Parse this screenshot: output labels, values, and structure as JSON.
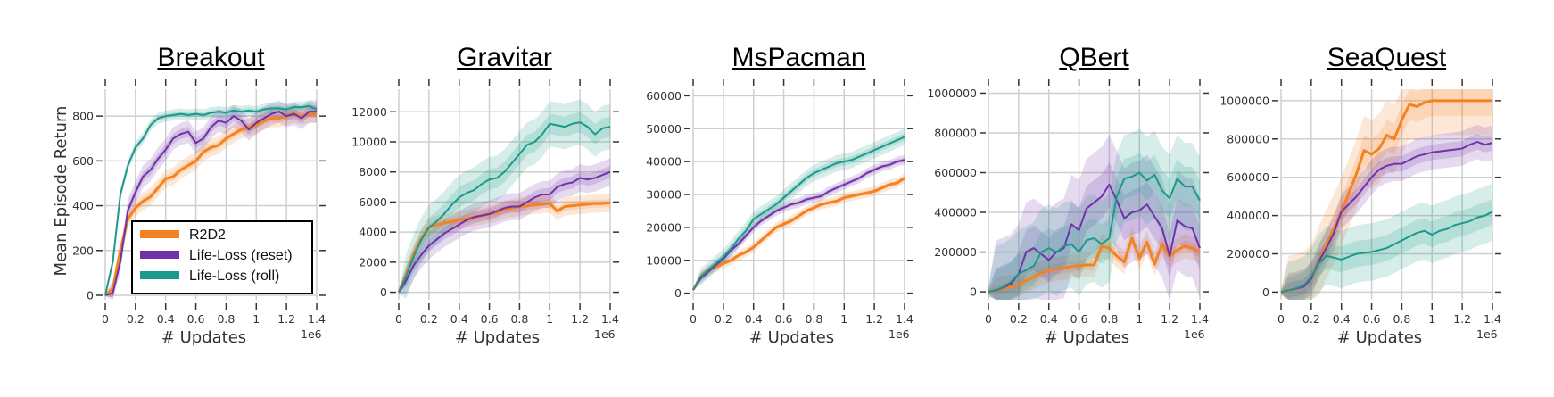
{
  "figure": {
    "ylabel": "Mean Episode Return",
    "xlabel": "# Updates",
    "x_multiplier": "1e6",
    "legend": [
      {
        "label": "R2D2",
        "color": "#f58220"
      },
      {
        "label": "Life-Loss (reset)",
        "color": "#6f32a8"
      },
      {
        "label": "Life-Loss (roll)",
        "color": "#1b9a8b"
      }
    ]
  },
  "chart_data": [
    {
      "type": "line",
      "title": "Breakout",
      "xlabel": "# Updates",
      "ylabel": "Mean Episode Return",
      "x_multiplier": "1e6",
      "xlim": [
        0,
        1.4
      ],
      "ylim": [
        -20,
        920
      ],
      "xticks": [
        0.0,
        0.2,
        0.4,
        0.6,
        0.8,
        1.0,
        1.2,
        1.4
      ],
      "yticks": [
        0,
        200,
        400,
        600,
        800
      ],
      "grid": true,
      "legend_position": "lower center",
      "x": [
        0.0,
        0.05,
        0.1,
        0.15,
        0.2,
        0.25,
        0.3,
        0.35,
        0.4,
        0.45,
        0.5,
        0.55,
        0.6,
        0.65,
        0.7,
        0.75,
        0.8,
        0.85,
        0.9,
        0.95,
        1.0,
        1.05,
        1.1,
        1.15,
        1.2,
        1.25,
        1.3,
        1.35,
        1.4
      ],
      "series": [
        {
          "name": "R2D2",
          "color": "#f58220",
          "band": 40,
          "values": [
            0,
            30,
            200,
            340,
            390,
            420,
            440,
            480,
            520,
            530,
            560,
            580,
            600,
            640,
            660,
            670,
            700,
            720,
            740,
            750,
            760,
            780,
            790,
            790,
            800,
            810,
            800,
            810,
            810
          ]
        },
        {
          "name": "Life-Loss (reset)",
          "color": "#6f32a8",
          "band": 50,
          "values": [
            0,
            10,
            150,
            380,
            460,
            530,
            560,
            610,
            650,
            700,
            720,
            730,
            680,
            700,
            750,
            780,
            770,
            800,
            780,
            740,
            770,
            790,
            810,
            820,
            800,
            810,
            790,
            820,
            820
          ]
        },
        {
          "name": "Life-Loss (roll)",
          "color": "#1b9a8b",
          "band": 25,
          "values": [
            0,
            150,
            450,
            580,
            660,
            700,
            760,
            790,
            800,
            805,
            810,
            805,
            810,
            805,
            815,
            820,
            815,
            825,
            820,
            825,
            820,
            830,
            835,
            835,
            830,
            840,
            840,
            845,
            830
          ]
        }
      ]
    },
    {
      "type": "line",
      "title": "Gravitar",
      "xlabel": "# Updates",
      "ylabel": "",
      "x_multiplier": "1e6",
      "xlim": [
        0,
        1.4
      ],
      "ylim": [
        -500,
        13500
      ],
      "xticks": [
        0.0,
        0.2,
        0.4,
        0.6,
        0.8,
        1.0,
        1.2,
        1.4
      ],
      "yticks": [
        0,
        2000,
        4000,
        6000,
        8000,
        10000,
        12000
      ],
      "grid": true,
      "x": [
        0.0,
        0.05,
        0.1,
        0.15,
        0.2,
        0.25,
        0.3,
        0.35,
        0.4,
        0.45,
        0.5,
        0.55,
        0.6,
        0.65,
        0.7,
        0.75,
        0.8,
        0.85,
        0.9,
        0.95,
        1.0,
        1.05,
        1.1,
        1.15,
        1.2,
        1.25,
        1.3,
        1.35,
        1.4
      ],
      "series": [
        {
          "name": "R2D2",
          "color": "#f58220",
          "band": 600,
          "values": [
            0,
            1200,
            2600,
            3600,
            4300,
            4500,
            4600,
            4700,
            4800,
            4900,
            5000,
            5100,
            5200,
            5300,
            5500,
            5600,
            5700,
            5750,
            5800,
            5850,
            5900,
            5400,
            5700,
            5750,
            5800,
            5850,
            5900,
            5900,
            5950
          ]
        },
        {
          "name": "Life-Loss (reset)",
          "color": "#6f32a8",
          "band": 900,
          "values": [
            0,
            800,
            1800,
            2500,
            3100,
            3500,
            3900,
            4200,
            4500,
            4800,
            5000,
            5100,
            5200,
            5400,
            5600,
            5700,
            5700,
            6000,
            6300,
            6500,
            6500,
            7000,
            7200,
            7300,
            7600,
            7500,
            7600,
            7800,
            8000
          ]
        },
        {
          "name": "Life-Loss (roll)",
          "color": "#1b9a8b",
          "band": 1500,
          "values": [
            0,
            1100,
            2400,
            3500,
            4300,
            4700,
            5200,
            5800,
            6300,
            6600,
            6800,
            7200,
            7500,
            7600,
            8000,
            8600,
            9200,
            9800,
            10000,
            10500,
            11200,
            11100,
            11000,
            11200,
            11300,
            11000,
            10500,
            10900,
            11000
          ]
        }
      ]
    },
    {
      "type": "line",
      "title": "MsPacman",
      "xlabel": "# Updates",
      "ylabel": "",
      "x_multiplier": "1e6",
      "xlim": [
        0,
        1.4
      ],
      "ylim": [
        -2000,
        62000
      ],
      "xticks": [
        0.0,
        0.2,
        0.4,
        0.6,
        0.8,
        1.0,
        1.2,
        1.4
      ],
      "yticks": [
        0,
        10000,
        20000,
        30000,
        40000,
        50000,
        60000
      ],
      "grid": true,
      "x": [
        0.0,
        0.05,
        0.1,
        0.15,
        0.2,
        0.25,
        0.3,
        0.35,
        0.4,
        0.45,
        0.5,
        0.55,
        0.6,
        0.65,
        0.7,
        0.75,
        0.8,
        0.85,
        0.9,
        0.95,
        1.0,
        1.05,
        1.1,
        1.15,
        1.2,
        1.25,
        1.3,
        1.35,
        1.4
      ],
      "series": [
        {
          "name": "R2D2",
          "color": "#f58220",
          "band": 1500,
          "values": [
            1000,
            5000,
            7000,
            8000,
            9000,
            10000,
            11500,
            12500,
            14000,
            16000,
            18000,
            20000,
            21000,
            22000,
            23500,
            25000,
            26000,
            27000,
            27500,
            28000,
            29000,
            29500,
            30000,
            30500,
            31000,
            32000,
            33000,
            33500,
            35000
          ]
        },
        {
          "name": "Life-Loss (reset)",
          "color": "#6f32a8",
          "band": 1500,
          "values": [
            1000,
            4500,
            6500,
            8500,
            10500,
            13000,
            15000,
            17500,
            20000,
            22000,
            23500,
            25000,
            26000,
            27000,
            27500,
            28500,
            29000,
            29500,
            31000,
            32000,
            33000,
            34000,
            35000,
            36500,
            37500,
            38500,
            39000,
            40000,
            40500
          ]
        },
        {
          "name": "Life-Loss (roll)",
          "color": "#1b9a8b",
          "band": 2500,
          "values": [
            1000,
            5000,
            7000,
            9000,
            11000,
            13500,
            16500,
            19000,
            22500,
            24000,
            25500,
            27000,
            29000,
            31000,
            33000,
            35000,
            36500,
            37500,
            38500,
            39500,
            40000,
            40500,
            41500,
            42500,
            43500,
            44500,
            45500,
            46500,
            47500
          ]
        }
      ]
    },
    {
      "type": "line",
      "title": "QBert",
      "xlabel": "# Updates",
      "ylabel": "",
      "x_multiplier": "1e6",
      "xlim": [
        0,
        1.4
      ],
      "ylim": [
        -40000,
        1020000
      ],
      "xticks": [
        0.0,
        0.2,
        0.4,
        0.6,
        0.8,
        1.0,
        1.2,
        1.4
      ],
      "yticks": [
        0,
        200000,
        400000,
        600000,
        800000,
        1000000
      ],
      "grid": true,
      "x": [
        0.0,
        0.05,
        0.1,
        0.15,
        0.2,
        0.25,
        0.3,
        0.35,
        0.4,
        0.45,
        0.5,
        0.55,
        0.6,
        0.65,
        0.7,
        0.75,
        0.8,
        0.85,
        0.9,
        0.95,
        1.0,
        1.05,
        1.1,
        1.15,
        1.2,
        1.25,
        1.3,
        1.35,
        1.4
      ],
      "series": [
        {
          "name": "R2D2",
          "color": "#f58220",
          "band": 60000,
          "values": [
            0,
            8000,
            18000,
            25000,
            35000,
            55000,
            75000,
            95000,
            105000,
            115000,
            120000,
            128000,
            132000,
            135000,
            135000,
            230000,
            220000,
            180000,
            150000,
            270000,
            170000,
            250000,
            140000,
            240000,
            180000,
            210000,
            230000,
            220000,
            200000
          ]
        },
        {
          "name": "Life-Loss (reset)",
          "color": "#6f32a8",
          "band": 250000,
          "values": [
            0,
            8000,
            22000,
            40000,
            90000,
            200000,
            220000,
            190000,
            160000,
            200000,
            220000,
            340000,
            310000,
            420000,
            450000,
            480000,
            540000,
            460000,
            370000,
            400000,
            410000,
            440000,
            380000,
            320000,
            180000,
            360000,
            330000,
            320000,
            220000
          ]
        },
        {
          "name": "Life-Loss (roll)",
          "color": "#1b9a8b",
          "band": 220000,
          "values": [
            0,
            10000,
            25000,
            50000,
            90000,
            110000,
            130000,
            200000,
            220000,
            200000,
            230000,
            240000,
            200000,
            260000,
            270000,
            240000,
            270000,
            480000,
            570000,
            580000,
            600000,
            560000,
            590000,
            510000,
            470000,
            570000,
            530000,
            530000,
            460000
          ]
        }
      ]
    },
    {
      "type": "line",
      "title": "SeaQuest",
      "xlabel": "# Updates",
      "ylabel": "",
      "x_multiplier": "1e6",
      "xlim": [
        0,
        1.4
      ],
      "ylim": [
        -40000,
        1060000
      ],
      "xticks": [
        0.0,
        0.2,
        0.4,
        0.6,
        0.8,
        1.0,
        1.2,
        1.4
      ],
      "yticks": [
        0,
        200000,
        400000,
        600000,
        800000,
        1000000
      ],
      "grid": true,
      "x": [
        0.0,
        0.05,
        0.1,
        0.15,
        0.2,
        0.25,
        0.3,
        0.35,
        0.4,
        0.45,
        0.5,
        0.55,
        0.6,
        0.65,
        0.7,
        0.75,
        0.8,
        0.85,
        0.9,
        0.95,
        1.0,
        1.05,
        1.1,
        1.15,
        1.2,
        1.25,
        1.3,
        1.35,
        1.4
      ],
      "series": [
        {
          "name": "R2D2",
          "color": "#f58220",
          "band": 180000,
          "values": [
            0,
            10000,
            18000,
            30000,
            70000,
            160000,
            250000,
            330000,
            420000,
            520000,
            620000,
            740000,
            720000,
            750000,
            820000,
            800000,
            900000,
            980000,
            970000,
            990000,
            1000000,
            1000000,
            1000000,
            1000000,
            1000000,
            1000000,
            1000000,
            1000000,
            1000000
          ]
        },
        {
          "name": "Life-Loss (reset)",
          "color": "#6f32a8",
          "band": 90000,
          "values": [
            0,
            10000,
            18000,
            28000,
            70000,
            160000,
            230000,
            310000,
            420000,
            460000,
            500000,
            550000,
            600000,
            640000,
            660000,
            670000,
            670000,
            690000,
            710000,
            720000,
            730000,
            735000,
            740000,
            745000,
            750000,
            770000,
            785000,
            770000,
            780000
          ]
        },
        {
          "name": "Life-Loss (roll)",
          "color": "#1b9a8b",
          "band": 150000,
          "values": [
            0,
            10000,
            20000,
            35000,
            80000,
            150000,
            190000,
            180000,
            170000,
            185000,
            200000,
            205000,
            210000,
            220000,
            230000,
            250000,
            270000,
            290000,
            310000,
            320000,
            300000,
            320000,
            330000,
            350000,
            360000,
            370000,
            390000,
            400000,
            420000
          ]
        }
      ]
    }
  ]
}
